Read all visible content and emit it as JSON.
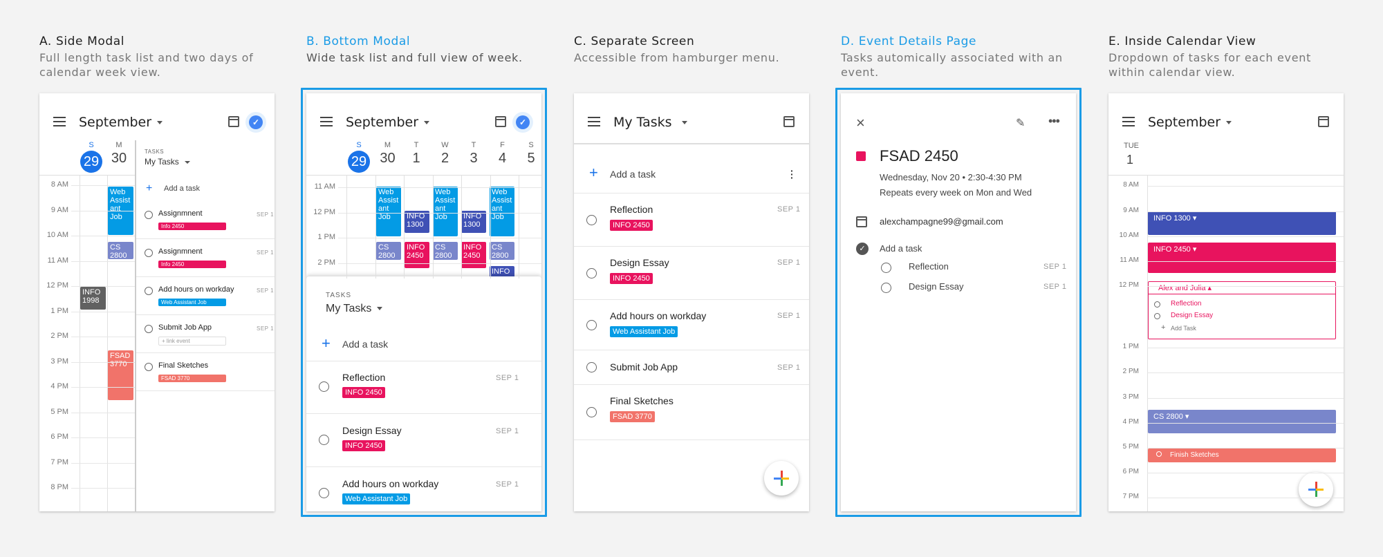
{
  "colors": {
    "blue_accent": "#1a9be6",
    "info2450": "#e8135e",
    "info1300": "#3f51b5",
    "cs2800": "#7986cb",
    "web": "#039be5",
    "fsad3770": "#f1736a",
    "info1998": "#616161"
  },
  "a": {
    "title": "A. Side Modal",
    "sub1": "Full length task list and two days of",
    "sub2": "calendar week view.",
    "month": "September",
    "day1_l": "S",
    "day1_n": "29",
    "day2_l": "M",
    "day2_n": "30",
    "hours": [
      "8 AM",
      "9 AM",
      "10 AM",
      "11 AM",
      "12 PM",
      "1 PM",
      "2 PM",
      "3 PM",
      "4 PM",
      "5 PM",
      "6 PM",
      "7 PM",
      "8 PM"
    ],
    "ev_web": "Web Assist ant Job",
    "ev_cs": "CS 2800",
    "ev_info1998": "INFO 1998",
    "ev_fsad": "FSAD 3770",
    "tasks_label": "TASKS",
    "tasks_list": "My Tasks",
    "add": "Add a task",
    "tasks": [
      {
        "name": "Assignmnent",
        "date": "SEP 1",
        "tag": "Info 2450"
      },
      {
        "name": "Assignmnent",
        "date": "SEP 1",
        "tag": "Info 2450"
      },
      {
        "name": "Add hours on workday",
        "date": "SEP 1",
        "tag": "Web Assistant Job"
      },
      {
        "name": "Submit Job App",
        "date": "SEP 1",
        "tag": "+ link event"
      },
      {
        "name": "Final Sketches",
        "date": "",
        "tag": "FSAD 3770"
      }
    ]
  },
  "b": {
    "title": "B. Bottom Modal",
    "sub1": "Wide task list and full view of week.",
    "month": "September",
    "days": [
      {
        "l": "S",
        "n": "29"
      },
      {
        "l": "M",
        "n": "30"
      },
      {
        "l": "T",
        "n": "1"
      },
      {
        "l": "W",
        "n": "2"
      },
      {
        "l": "T",
        "n": "3"
      },
      {
        "l": "F",
        "n": "4"
      },
      {
        "l": "S",
        "n": "5"
      }
    ],
    "hours": [
      "11 AM",
      "12 PM",
      "1 PM",
      "2 PM"
    ],
    "ev_web": "Web Assist ant Job",
    "ev_info1300": "INFO 1300",
    "ev_cs": "CS 2800",
    "ev_info2450": "INFO 2450",
    "ev_info": "INFO",
    "tasks_label": "TASKS",
    "tasks_list": "My Tasks",
    "add": "Add a task",
    "tasks": [
      {
        "name": "Reflection",
        "date": "SEP 1",
        "tag": "INFO 2450"
      },
      {
        "name": "Design Essay",
        "date": "SEP 1",
        "tag": "INFO 2450"
      },
      {
        "name": "Add hours on workday",
        "date": "SEP 1",
        "tag": "Web Assistant Job"
      }
    ]
  },
  "c": {
    "title": "C. Separate Screen",
    "sub1": "Accessible from hamburger menu.",
    "list": "My Tasks",
    "add": "Add a task",
    "tasks": [
      {
        "name": "Reflection",
        "date": "SEP 1",
        "tag": "INFO 2450"
      },
      {
        "name": "Design Essay",
        "date": "SEP 1",
        "tag": "INFO 2450"
      },
      {
        "name": "Add hours on workday",
        "date": "SEP 1",
        "tag": "Web Assistant Job"
      },
      {
        "name": "Submit Job App",
        "date": "SEP 1",
        "tag": ""
      },
      {
        "name": "Final Sketches",
        "date": "",
        "tag": "FSAD 3770"
      }
    ]
  },
  "d": {
    "title": "D. Event Details Page",
    "sub1": "Tasks automically associated with an",
    "sub2": "event.",
    "event": "FSAD 2450",
    "when": "Wednesday, Nov 20 • 2:30-4:30 PM",
    "repeat": "Repeats every week on Mon and Wed",
    "email": "alexchampagne99@gmail.com",
    "add": "Add a task",
    "tasks": [
      {
        "name": "Reflection",
        "date": "SEP 1"
      },
      {
        "name": "Design Essay",
        "date": "SEP 1"
      }
    ]
  },
  "e": {
    "title": "E. Inside Calendar View",
    "sub1": "Dropdown of tasks for each event",
    "sub2": "within calendar view.",
    "month": "September",
    "dayl": "TUE",
    "dayn": "1",
    "hours": [
      "8 AM",
      "9 AM",
      "10 AM",
      "11 AM",
      "12 PM",
      "1 PM",
      "2 PM",
      "3 PM",
      "4 PM",
      "5 PM",
      "6 PM",
      "7 PM"
    ],
    "ev_info1300": "INFO 1300",
    "ev_info2450": "INFO 2450",
    "ev_alex": "Alex and Julia",
    "sub_t1": "Reflection",
    "sub_t2": "Design Essay",
    "sub_add": "Add Task",
    "ev_cs": "CS 2800",
    "ev_finish": "Finish Sketches"
  }
}
